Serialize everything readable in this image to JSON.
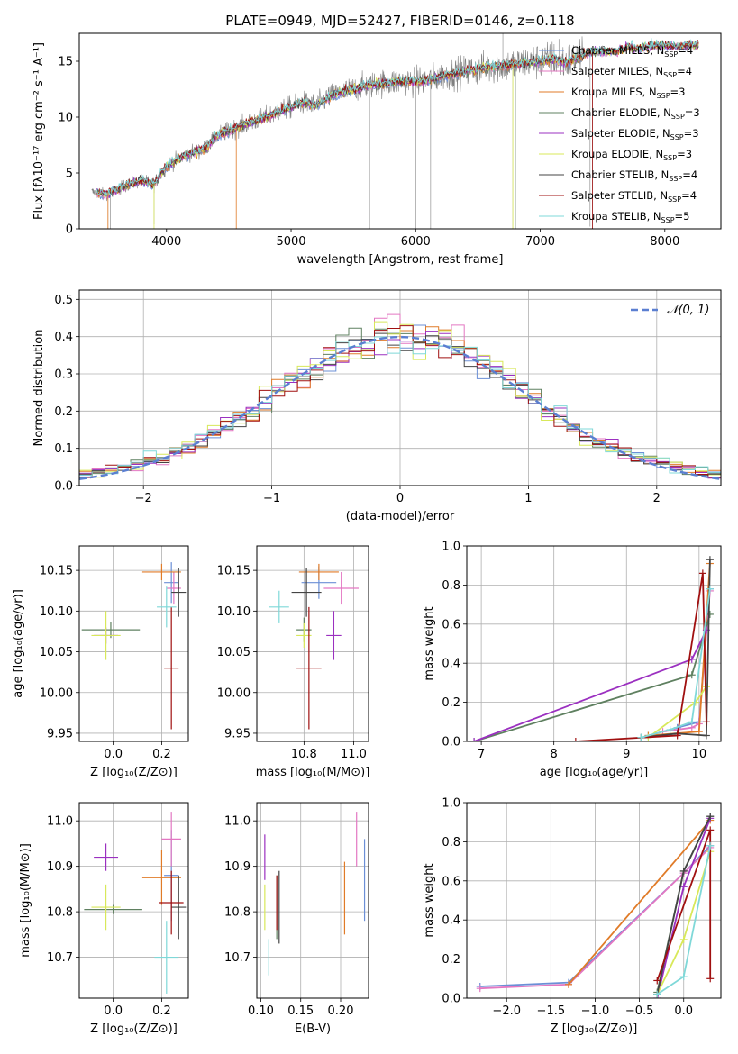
{
  "colors": {
    "Chabrier MILES": "#6b8fd6",
    "Salpeter MILES": "#e377c2",
    "Kroupa MILES": "#e07b28",
    "Chabrier ELODIE": "#5f8060",
    "Salpeter ELODIE": "#9b30c0",
    "Kroupa ELODIE": "#d8e85a",
    "Chabrier STELIB": "#444444",
    "Salpeter STELIB": "#a01010",
    "Kroupa STELIB": "#7fd8d8",
    "data": "#808080",
    "normal": "#5b7fd1"
  },
  "chart_data": [
    {
      "id": "spectrum",
      "type": "line",
      "title": "PLATE=0949, MJD=52427, FIBERID=0146, z=0.118",
      "xlabel": "wavelength [Angstrom, rest frame]",
      "ylabel": "Flux [fλ10⁻¹⁷ erg cm⁻² s⁻¹ A⁻¹]",
      "xlim": [
        3300,
        8450
      ],
      "ylim": [
        0,
        17.5
      ],
      "xticks": [
        "4000",
        "5000",
        "6000",
        "7000",
        "8000"
      ],
      "yticks": [
        "0",
        "5",
        "10",
        "15"
      ],
      "legend": [
        {
          "label": "Chabrier MILES, N",
          "sub": "SSP",
          "suffix": "=4",
          "key": "Chabrier MILES"
        },
        {
          "label": "Salpeter MILES, N",
          "sub": "SSP",
          "suffix": "=4",
          "key": "Salpeter MILES"
        },
        {
          "label": "Kroupa MILES, N",
          "sub": "SSP",
          "suffix": "=3",
          "key": "Kroupa MILES"
        },
        {
          "label": "Chabrier ELODIE, N",
          "sub": "SSP",
          "suffix": "=3",
          "key": "Chabrier ELODIE"
        },
        {
          "label": "Salpeter ELODIE, N",
          "sub": "SSP",
          "suffix": "=3",
          "key": "Salpeter ELODIE"
        },
        {
          "label": "Kroupa ELODIE, N",
          "sub": "SSP",
          "suffix": "=3",
          "key": "Kroupa ELODIE"
        },
        {
          "label": "Chabrier STELIB, N",
          "sub": "SSP",
          "suffix": "=4",
          "key": "Chabrier STELIB"
        },
        {
          "label": "Salpeter STELIB, N",
          "sub": "SSP",
          "suffix": "=4",
          "key": "Salpeter STELIB"
        },
        {
          "label": "Kroupa STELIB, N",
          "sub": "SSP",
          "suffix": "=5",
          "key": "Kroupa STELIB"
        }
      ],
      "legend_loc": "upper right",
      "continuum": [
        [
          3400,
          3.3
        ],
        [
          3500,
          3.1
        ],
        [
          3600,
          3.5
        ],
        [
          3700,
          4.0
        ],
        [
          3800,
          4.3
        ],
        [
          3900,
          4.0
        ],
        [
          3950,
          4.8
        ],
        [
          4000,
          5.6
        ],
        [
          4100,
          6.3
        ],
        [
          4200,
          6.8
        ],
        [
          4300,
          7.1
        ],
        [
          4400,
          8.3
        ],
        [
          4500,
          8.8
        ],
        [
          4600,
          9.2
        ],
        [
          4700,
          9.6
        ],
        [
          4800,
          10.0
        ],
        [
          4900,
          10.5
        ],
        [
          5000,
          10.9
        ],
        [
          5100,
          11.3
        ],
        [
          5200,
          11.0
        ],
        [
          5300,
          11.8
        ],
        [
          5400,
          12.2
        ],
        [
          5500,
          12.5
        ],
        [
          5600,
          12.8
        ],
        [
          5700,
          13.0
        ],
        [
          5800,
          13.1
        ],
        [
          5900,
          13.2
        ],
        [
          6000,
          13.2
        ],
        [
          6100,
          13.3
        ],
        [
          6200,
          13.6
        ],
        [
          6300,
          13.9
        ],
        [
          6400,
          14.1
        ],
        [
          6500,
          14.3
        ],
        [
          6600,
          14.5
        ],
        [
          6700,
          14.6
        ],
        [
          6800,
          14.7
        ],
        [
          6900,
          14.9
        ],
        [
          7000,
          15.0
        ],
        [
          7100,
          15.2
        ],
        [
          7200,
          14.9
        ],
        [
          7300,
          15.3
        ],
        [
          7400,
          15.8
        ],
        [
          7500,
          15.9
        ],
        [
          7600,
          15.8
        ],
        [
          7700,
          16.3
        ],
        [
          7800,
          16.1
        ],
        [
          7900,
          16.4
        ],
        [
          8000,
          16.4
        ],
        [
          8100,
          16.3
        ],
        [
          8200,
          16.5
        ],
        [
          8300,
          16.4
        ]
      ],
      "data_range": [
        3400,
        7350
      ],
      "model_range": [
        3440,
        8270
      ],
      "spikes": [
        [
          3530,
          0
        ],
        [
          3550,
          0
        ],
        [
          3900,
          0.4
        ],
        [
          5630,
          0
        ],
        [
          6000,
          0
        ],
        [
          6120,
          0
        ],
        [
          6780,
          0
        ],
        [
          6800,
          0
        ],
        [
          7400,
          0.2
        ],
        [
          7420,
          0
        ],
        [
          6700,
          17.5
        ],
        [
          7150,
          17.0
        ]
      ]
    },
    {
      "id": "residuals",
      "type": "line",
      "xlabel": "(data-model)/error",
      "ylabel": "Normed distribution",
      "xlim": [
        -2.5,
        2.5
      ],
      "ylim": [
        0,
        0.525
      ],
      "xticks": [
        "−2",
        "−1",
        "0",
        "1",
        "2"
      ],
      "yticks": [
        "0.0",
        "0.1",
        "0.2",
        "0.3",
        "0.4",
        "0.5"
      ],
      "bin_width": 0.1,
      "series_name": "𝒩(0, 1)",
      "legend_loc": "upper right"
    },
    {
      "id": "age_vs_Z",
      "type": "scatter",
      "xlabel": "Z [log₁₀(Z/Z⊙)]",
      "ylabel": "age  [log₁₀(age/yr)]",
      "xlim": [
        -0.14,
        0.31
      ],
      "ylim": [
        9.94,
        10.18
      ],
      "xticks": [
        "0.0",
        "0.2"
      ],
      "yticks": [
        "9.95",
        "10.00",
        "10.05",
        "10.10",
        "10.15"
      ],
      "points": [
        {
          "key": "Chabrier MILES",
          "x": 0.24,
          "y": 10.135,
          "ex": 0.03,
          "ey": 0.025
        },
        {
          "key": "Salpeter MILES",
          "x": 0.25,
          "y": 10.128,
          "ex": 0.03,
          "ey": 0.02
        },
        {
          "key": "Kroupa MILES",
          "x": 0.2,
          "y": 10.148,
          "ex": 0.08,
          "ey": 0.01
        },
        {
          "key": "Chabrier ELODIE",
          "x": -0.01,
          "y": 10.077,
          "ex": 0.12,
          "ey": 0.01
        },
        {
          "key": "Salpeter ELODIE",
          "x": -0.03,
          "y": 10.07,
          "ex": 0.05,
          "ey": 0.01
        },
        {
          "key": "Kroupa ELODIE",
          "x": -0.03,
          "y": 10.07,
          "ex": 0.06,
          "ey": 0.03
        },
        {
          "key": "Chabrier STELIB",
          "x": 0.27,
          "y": 10.123,
          "ex": 0.03,
          "ey": 0.03
        },
        {
          "key": "Salpeter STELIB",
          "x": 0.24,
          "y": 10.03,
          "ex": 0.03,
          "ey": 0.075
        },
        {
          "key": "Kroupa STELIB",
          "x": 0.22,
          "y": 10.105,
          "ex": 0.04,
          "ey": 0.025
        }
      ]
    },
    {
      "id": "age_vs_mass",
      "type": "scatter",
      "xlabel": "mass [log₁₀(M/M⊙)]",
      "ylabel": "",
      "xlim": [
        10.61,
        11.06
      ],
      "ylim": [
        9.94,
        10.18
      ],
      "xticks": [
        "10.8",
        "11.0"
      ],
      "yticks": [
        "9.95",
        "10.00",
        "10.05",
        "10.10",
        "10.15"
      ],
      "points": [
        {
          "key": "Chabrier MILES",
          "x": 10.86,
          "y": 10.135,
          "ex": 0.07,
          "ey": 0.02
        },
        {
          "key": "Salpeter MILES",
          "x": 10.95,
          "y": 10.128,
          "ex": 0.07,
          "ey": 0.02
        },
        {
          "key": "Kroupa MILES",
          "x": 10.86,
          "y": 10.148,
          "ex": 0.08,
          "ey": 0.01
        },
        {
          "key": "Chabrier ELODIE",
          "x": 10.8,
          "y": 10.077,
          "ex": 0.03,
          "ey": 0.015
        },
        {
          "key": "Salpeter ELODIE",
          "x": 10.92,
          "y": 10.07,
          "ex": 0.03,
          "ey": 0.03
        },
        {
          "key": "Kroupa ELODIE",
          "x": 10.8,
          "y": 10.07,
          "ex": 0.03,
          "ey": 0.015
        },
        {
          "key": "Chabrier STELIB",
          "x": 10.81,
          "y": 10.123,
          "ex": 0.06,
          "ey": 0.03
        },
        {
          "key": "Salpeter STELIB",
          "x": 10.82,
          "y": 10.03,
          "ex": 0.05,
          "ey": 0.075
        },
        {
          "key": "Kroupa STELIB",
          "x": 10.7,
          "y": 10.105,
          "ex": 0.04,
          "ey": 0.02
        }
      ]
    },
    {
      "id": "weight_vs_age",
      "type": "line",
      "xlabel": "age  [log₁₀(age/yr)]",
      "ylabel": "mass weight",
      "xlim": [
        6.8,
        10.3
      ],
      "ylim": [
        0,
        1.0
      ],
      "xticks": [
        "7",
        "8",
        "9",
        "10"
      ],
      "yticks": [
        "0.0",
        "0.2",
        "0.4",
        "0.6",
        "0.8",
        "1.0"
      ],
      "series": [
        {
          "key": "Chabrier MILES",
          "x": [
            9.3,
            9.7,
            10.0,
            10.15
          ],
          "y": [
            0.03,
            0.07,
            0.1,
            0.78
          ]
        },
        {
          "key": "Salpeter MILES",
          "x": [
            9.5,
            9.9,
            10.0,
            10.15
          ],
          "y": [
            0.05,
            0.07,
            0.09,
            0.77
          ]
        },
        {
          "key": "Kroupa MILES",
          "x": [
            9.3,
            10.0,
            10.15
          ],
          "y": [
            0.03,
            0.05,
            0.91
          ]
        },
        {
          "key": "Chabrier ELODIE",
          "x": [
            6.9,
            9.9,
            10.15
          ],
          "y": [
            0.0,
            0.34,
            0.65
          ]
        },
        {
          "key": "Salpeter ELODIE",
          "x": [
            6.9,
            9.9,
            10.1
          ],
          "y": [
            0.0,
            0.42,
            0.57
          ]
        },
        {
          "key": "Kroupa ELODIE",
          "x": [
            9.3,
            9.95,
            10.1
          ],
          "y": [
            0.02,
            0.2,
            0.28
          ]
        },
        {
          "key": "Chabrier STELIB",
          "x": [
            9.2,
            9.7,
            10.1,
            10.15
          ],
          "y": [
            0.02,
            0.04,
            0.03,
            0.93
          ]
        },
        {
          "key": "Salpeter STELIB",
          "x": [
            8.3,
            9.7,
            10.05,
            10.1
          ],
          "y": [
            0.0,
            0.03,
            0.86,
            0.1
          ]
        },
        {
          "key": "Kroupa STELIB",
          "x": [
            9.2,
            9.6,
            9.9,
            10.15
          ],
          "y": [
            0.02,
            0.06,
            0.1,
            0.78
          ]
        }
      ]
    },
    {
      "id": "mass_vs_Z",
      "type": "scatter",
      "xlabel": "Z [log₁₀(Z/Z⊙)]",
      "ylabel": "mass [log₁₀(M/M⊙)]",
      "xlim": [
        -0.14,
        0.31
      ],
      "ylim": [
        10.61,
        11.04
      ],
      "xticks": [
        "0.0",
        "0.2"
      ],
      "yticks": [
        "10.7",
        "10.8",
        "10.9",
        "11.0"
      ],
      "points": [
        {
          "key": "Chabrier MILES",
          "x": 0.24,
          "y": 10.88,
          "ex": 0.03,
          "ey": 0.1
        },
        {
          "key": "Salpeter MILES",
          "x": 0.24,
          "y": 10.96,
          "ex": 0.04,
          "ey": 0.06
        },
        {
          "key": "Kroupa MILES",
          "x": 0.2,
          "y": 10.875,
          "ex": 0.08,
          "ey": 0.06
        },
        {
          "key": "Chabrier ELODIE",
          "x": 0.0,
          "y": 10.805,
          "ex": 0.12,
          "ey": 0.01
        },
        {
          "key": "Salpeter ELODIE",
          "x": -0.03,
          "y": 10.92,
          "ex": 0.05,
          "ey": 0.03
        },
        {
          "key": "Kroupa ELODIE",
          "x": -0.03,
          "y": 10.81,
          "ex": 0.06,
          "ey": 0.05
        },
        {
          "key": "Chabrier STELIB",
          "x": 0.27,
          "y": 10.81,
          "ex": 0.03,
          "ey": 0.07
        },
        {
          "key": "Salpeter STELIB",
          "x": 0.24,
          "y": 10.82,
          "ex": 0.05,
          "ey": 0.07
        },
        {
          "key": "Kroupa STELIB",
          "x": 0.22,
          "y": 10.7,
          "ex": 0.05,
          "ey": 0.08
        }
      ]
    },
    {
      "id": "mass_vs_ebv",
      "type": "scatter",
      "xlabel": "E(B-V)",
      "ylabel": "",
      "xlim": [
        0.095,
        0.235
      ],
      "ylim": [
        10.61,
        11.04
      ],
      "xticks": [
        "0.10",
        "0.15",
        "0.20"
      ],
      "yticks": [
        "10.7",
        "10.8",
        "10.9",
        "11.0"
      ],
      "points": [
        {
          "key": "Chabrier MILES",
          "x": 0.23,
          "y": 10.87,
          "ey": 0.09
        },
        {
          "key": "Salpeter MILES",
          "x": 0.22,
          "y": 10.96,
          "ey": 0.06
        },
        {
          "key": "Kroupa MILES",
          "x": 0.205,
          "y": 10.83,
          "ey": 0.08
        },
        {
          "key": "Chabrier ELODIE",
          "x": 0.12,
          "y": 10.81,
          "ey": 0.07
        },
        {
          "key": "Salpeter ELODIE",
          "x": 0.105,
          "y": 10.92,
          "ey": 0.05
        },
        {
          "key": "Kroupa ELODIE",
          "x": 0.105,
          "y": 10.81,
          "ey": 0.05
        },
        {
          "key": "Chabrier STELIB",
          "x": 0.123,
          "y": 10.81,
          "ey": 0.08
        },
        {
          "key": "Salpeter STELIB",
          "x": 0.12,
          "y": 10.82,
          "ey": 0.06
        },
        {
          "key": "Kroupa STELIB",
          "x": 0.11,
          "y": 10.7,
          "ey": 0.04
        }
      ]
    },
    {
      "id": "weight_vs_Z",
      "type": "line",
      "xlabel": "Z [log₁₀(Z/Z⊙)]",
      "ylabel": "mass weight",
      "xlim": [
        -2.45,
        0.42
      ],
      "ylim": [
        0,
        1.0
      ],
      "xticks": [
        "−2.0",
        "−1.5",
        "−1.0",
        "−0.5",
        "0.0"
      ],
      "yticks": [
        "0.0",
        "0.2",
        "0.4",
        "0.6",
        "0.8",
        "1.0"
      ],
      "series": [
        {
          "key": "Chabrier MILES",
          "x": [
            -2.3,
            -1.3,
            0.0,
            0.3
          ],
          "y": [
            0.06,
            0.08,
            0.64,
            0.78
          ]
        },
        {
          "key": "Salpeter MILES",
          "x": [
            -2.3,
            -1.3,
            0.0,
            0.3
          ],
          "y": [
            0.05,
            0.07,
            0.64,
            0.77
          ]
        },
        {
          "key": "Kroupa MILES",
          "x": [
            -1.3,
            0.3
          ],
          "y": [
            0.07,
            0.91
          ]
        },
        {
          "key": "Chabrier ELODIE",
          "x": [
            -0.3,
            0.0,
            0.3
          ],
          "y": [
            0.03,
            0.65,
            0.93
          ]
        },
        {
          "key": "Salpeter ELODIE",
          "x": [
            -0.3,
            0.0,
            0.3
          ],
          "y": [
            0.0,
            0.57,
            0.92
          ]
        },
        {
          "key": "Kroupa ELODIE",
          "x": [
            -0.3,
            0.0,
            0.3
          ],
          "y": [
            0.02,
            0.3,
            0.75
          ]
        },
        {
          "key": "Chabrier STELIB",
          "x": [
            -0.3,
            0.0,
            0.3
          ],
          "y": [
            0.02,
            0.65,
            0.93
          ]
        },
        {
          "key": "Salpeter STELIB",
          "x": [
            -0.3,
            0.3,
            0.3
          ],
          "y": [
            0.09,
            0.86,
            0.1
          ]
        },
        {
          "key": "Kroupa STELIB",
          "x": [
            -0.3,
            0.0,
            0.3
          ],
          "y": [
            0.02,
            0.11,
            0.78
          ]
        }
      ]
    }
  ]
}
